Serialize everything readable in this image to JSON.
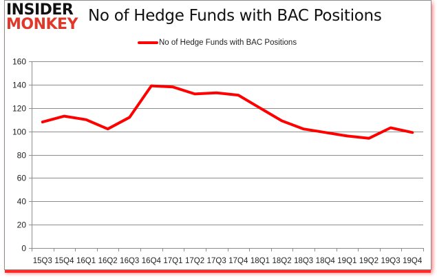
{
  "logo": {
    "line1": "INSIDER",
    "line2": "MONKEY"
  },
  "colors": {
    "series": "#ff0000",
    "grid": "#8c8c8c",
    "logo_red": "#e0392b"
  },
  "chart_data": {
    "type": "line",
    "title": "No of Hedge Funds with BAC Positions",
    "xlabel": "",
    "ylabel": "",
    "ylim": [
      0,
      160
    ],
    "yticks": [
      0,
      20,
      40,
      60,
      80,
      100,
      120,
      140,
      160
    ],
    "grid": true,
    "legend_position": "top",
    "categories": [
      "15Q3",
      "15Q4",
      "16Q1",
      "16Q2",
      "16Q3",
      "16Q4",
      "17Q1",
      "17Q2",
      "17Q3",
      "17Q4",
      "18Q1",
      "18Q2",
      "18Q3",
      "18Q4",
      "19Q1",
      "19Q2",
      "19Q3",
      "19Q4"
    ],
    "series": [
      {
        "name": "No of Hedge Funds with BAC Positions",
        "color": "#ff0000",
        "values": [
          108,
          113,
          110,
          102,
          112,
          139,
          138,
          132,
          133,
          131,
          120,
          109,
          102,
          99,
          96,
          94,
          103,
          99
        ]
      }
    ]
  }
}
